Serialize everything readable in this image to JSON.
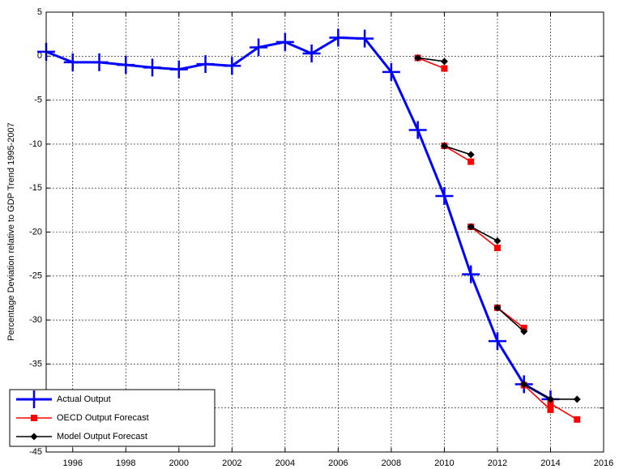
{
  "chart_data": {
    "type": "line",
    "ylabel": "Percentage Deviation relative to GDP Trend 1995-2007",
    "xlim": [
      1995,
      2016
    ],
    "xticks": [
      1996,
      1998,
      2000,
      2002,
      2004,
      2006,
      2008,
      2010,
      2012,
      2014,
      2016
    ],
    "ylim": [
      -45,
      5
    ],
    "yticks": [
      -45,
      -40,
      -35,
      -30,
      -25,
      -20,
      -15,
      -10,
      -5,
      0,
      5
    ],
    "grid": true,
    "legend": "lower left",
    "series": [
      {
        "name": "Actual Output",
        "color": "#0000ff",
        "marker": "plus",
        "x": [
          1995,
          1996,
          1997,
          1998,
          1999,
          2000,
          2001,
          2002,
          2003,
          2004,
          2005,
          2006,
          2007,
          2008,
          2009,
          2010,
          2011,
          2012,
          2013,
          2014
        ],
        "values": [
          0.5,
          -0.7,
          -0.7,
          -1.0,
          -1.3,
          -1.5,
          -0.9,
          -1.1,
          1.0,
          1.6,
          0.3,
          2.1,
          2.0,
          -1.8,
          -8.4,
          -15.9,
          -24.8,
          -32.4,
          -37.3,
          -39.0
        ]
      },
      {
        "name": "OECD Output Forecast",
        "color": "#ff0000",
        "marker": "square",
        "x": [
          2009,
          2010,
          null,
          2010,
          2011,
          null,
          2011,
          2012,
          null,
          2012,
          2013,
          null,
          2013,
          2014,
          null,
          2014,
          2015
        ],
        "values": [
          -0.2,
          -1.4,
          null,
          -10.2,
          -12.0,
          null,
          -19.4,
          -21.8,
          null,
          -28.6,
          -30.9,
          null,
          -37.4,
          -40.2,
          null,
          -39.5,
          -41.3
        ]
      },
      {
        "name": "Model Output Forecast",
        "color": "#000000",
        "marker": "diamond",
        "x": [
          2009,
          2010,
          null,
          2010,
          2011,
          null,
          2011,
          2012,
          null,
          2012,
          2013,
          null,
          2013,
          2014,
          null,
          2014,
          2015
        ],
        "values": [
          -0.2,
          -0.6,
          null,
          -10.2,
          -11.2,
          null,
          -19.4,
          -21.0,
          null,
          -28.6,
          -31.3,
          null,
          -37.3,
          -39.0,
          null,
          -39.0,
          -39.0
        ]
      }
    ]
  }
}
